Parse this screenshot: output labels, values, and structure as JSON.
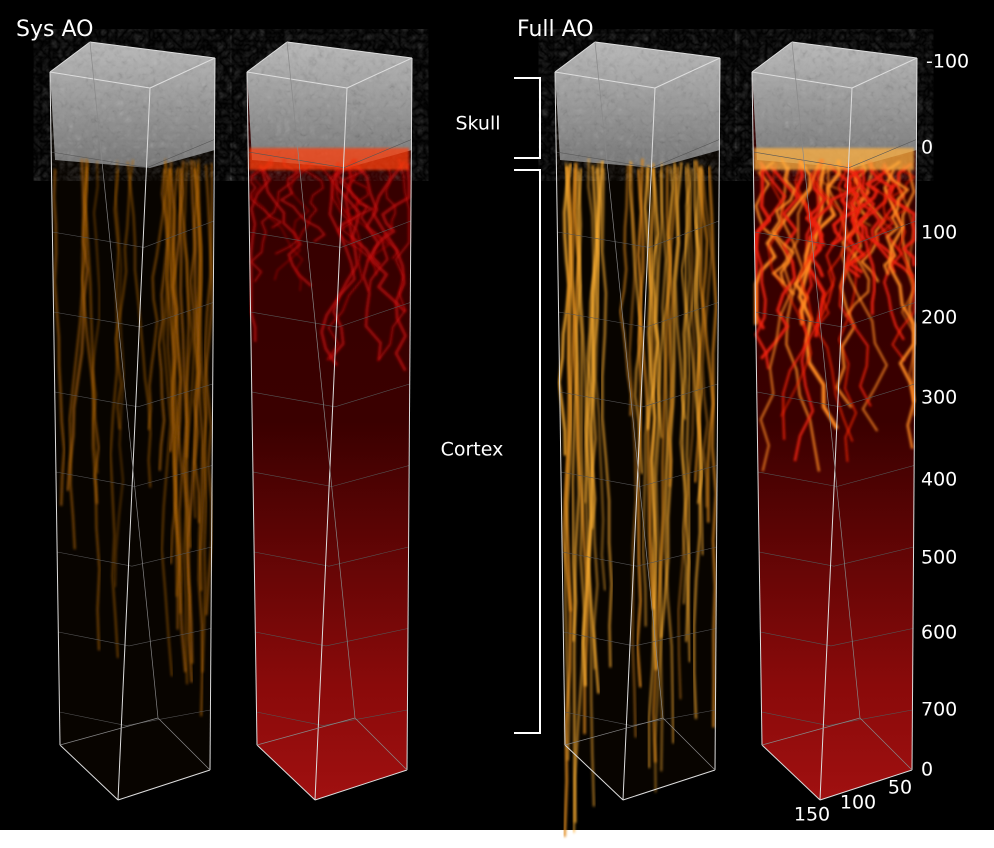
{
  "panels": [
    {
      "label": "Sys AO"
    },
    {
      "label": "Full AO"
    }
  ],
  "regions": [
    {
      "label": "Skull"
    },
    {
      "label": "Cortex"
    }
  ],
  "depth_labels": [
    "-100",
    "0",
    "100",
    "200",
    "300",
    "400",
    "500",
    "600",
    "700",
    "0"
  ],
  "lateral_labels": [
    "150",
    "100",
    "50"
  ]
}
